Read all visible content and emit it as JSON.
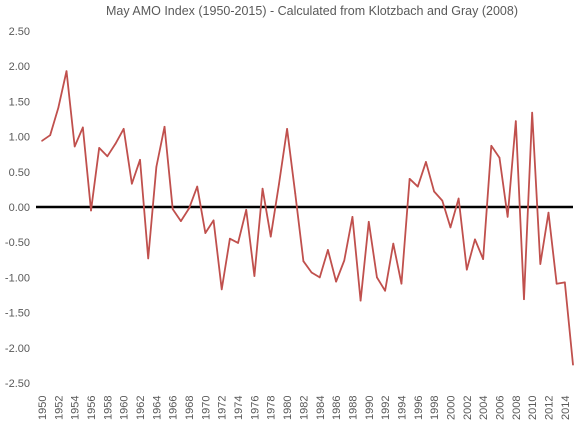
{
  "chart_data": {
    "type": "line",
    "title": "May AMO Index (1950-2015) - Calculated from Klotzbach and Gray (2008)",
    "xlabel": "",
    "ylabel": "",
    "ylim": [
      -2.5,
      2.5
    ],
    "y_ticks": [
      "2.50",
      "2.00",
      "1.50",
      "1.00",
      "0.50",
      "0.00",
      "-0.50",
      "-1.00",
      "-1.50",
      "-2.00",
      "-2.50"
    ],
    "x_tick_labels": [
      "1950",
      "1952",
      "1954",
      "1956",
      "1958",
      "1960",
      "1962",
      "1964",
      "1966",
      "1968",
      "1970",
      "1972",
      "1974",
      "1976",
      "1978",
      "1980",
      "1982",
      "1984",
      "1986",
      "1988",
      "1990",
      "1992",
      "1994",
      "1996",
      "1998",
      "2000",
      "2002",
      "2004",
      "2006",
      "2008",
      "2010",
      "2012",
      "2014"
    ],
    "grid": false,
    "legend": "none",
    "line_color": "#c0504d",
    "zero_line_color": "#000000",
    "x": [
      1950,
      1951,
      1952,
      1953,
      1954,
      1955,
      1956,
      1957,
      1958,
      1959,
      1960,
      1961,
      1962,
      1963,
      1964,
      1965,
      1966,
      1967,
      1968,
      1969,
      1970,
      1971,
      1972,
      1973,
      1974,
      1975,
      1976,
      1977,
      1978,
      1979,
      1980,
      1981,
      1982,
      1983,
      1984,
      1985,
      1986,
      1987,
      1988,
      1989,
      1990,
      1991,
      1992,
      1993,
      1994,
      1995,
      1996,
      1997,
      1998,
      1999,
      2000,
      2001,
      2002,
      2003,
      2004,
      2005,
      2006,
      2007,
      2008,
      2009,
      2010,
      2011,
      2012,
      2013,
      2014,
      2015
    ],
    "series": [
      {
        "values": [
          0.94,
          1.02,
          1.41,
          1.93,
          0.86,
          1.13,
          -0.05,
          0.84,
          0.72,
          0.9,
          1.11,
          0.33,
          0.67,
          -0.73,
          0.57,
          1.14,
          -0.03,
          -0.2,
          -0.02,
          0.29,
          -0.37,
          -0.19,
          -1.17,
          -0.45,
          -0.51,
          -0.04,
          -0.98,
          0.26,
          -0.42,
          0.32,
          1.11,
          0.19,
          -0.77,
          -0.93,
          -1.0,
          -0.61,
          -1.06,
          -0.76,
          -0.14,
          -1.33,
          -0.21,
          -1.0,
          -1.19,
          -0.52,
          -1.09,
          0.4,
          0.29,
          0.64,
          0.22,
          0.09,
          -0.29,
          0.12,
          -0.89,
          -0.46,
          -0.74,
          0.87,
          0.7,
          -0.14,
          1.22,
          -1.31,
          1.34,
          -0.81,
          -0.08,
          -1.09,
          -1.07,
          -2.24
        ]
      }
    ]
  }
}
